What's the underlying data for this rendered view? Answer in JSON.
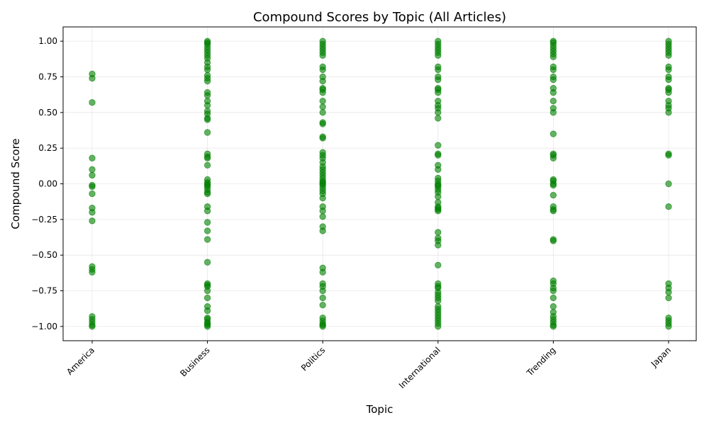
{
  "chart_data": {
    "type": "scatter",
    "title": "Compound Scores by Topic (All Articles)",
    "xlabel": "Topic",
    "ylabel": "Compound Score",
    "categories": [
      "America",
      "Business",
      "Politics",
      "International",
      "Trending",
      "Japan"
    ],
    "ylim": [
      -1.1,
      1.1
    ],
    "yticks": [
      -1.0,
      -0.75,
      -0.5,
      -0.25,
      0.0,
      0.25,
      0.5,
      0.75,
      1.0
    ],
    "ytick_labels": [
      "−1.00",
      "−0.75",
      "−0.50",
      "−0.25",
      "0.00",
      "0.25",
      "0.50",
      "0.75",
      "1.00"
    ],
    "grid": true,
    "marker_color": "#008000",
    "marker_alpha": 0.6,
    "points": {
      "America": [
        0.77,
        0.74,
        0.57,
        0.18,
        0.1,
        0.06,
        -0.01,
        -0.02,
        -0.07,
        -0.17,
        -0.2,
        -0.26,
        -0.58,
        -0.6,
        -0.62,
        -0.93,
        -0.95,
        -0.97,
        -0.99,
        -1.0
      ],
      "Business": [
        1.0,
        0.99,
        0.98,
        0.96,
        0.94,
        0.92,
        0.9,
        0.88,
        0.85,
        0.82,
        0.8,
        0.76,
        0.74,
        0.72,
        0.64,
        0.62,
        0.58,
        0.55,
        0.51,
        0.49,
        0.46,
        0.45,
        0.36,
        0.21,
        0.19,
        0.18,
        0.13,
        0.03,
        0.01,
        0.0,
        -0.01,
        -0.02,
        -0.04,
        -0.06,
        -0.07,
        -0.16,
        -0.19,
        -0.27,
        -0.33,
        -0.39,
        -0.55,
        -0.7,
        -0.71,
        -0.72,
        -0.75,
        -0.8,
        -0.86,
        -0.89,
        -0.94,
        -0.95,
        -0.97,
        -0.98,
        -0.99,
        -1.0
      ],
      "Politics": [
        1.0,
        0.98,
        0.96,
        0.94,
        0.92,
        0.9,
        0.82,
        0.8,
        0.75,
        0.72,
        0.67,
        0.66,
        0.64,
        0.58,
        0.54,
        0.5,
        0.43,
        0.42,
        0.33,
        0.32,
        0.22,
        0.2,
        0.18,
        0.15,
        0.12,
        0.1,
        0.08,
        0.06,
        0.04,
        0.02,
        0.01,
        0.0,
        -0.01,
        -0.03,
        -0.05,
        -0.07,
        -0.1,
        -0.16,
        -0.19,
        -0.23,
        -0.3,
        -0.33,
        -0.59,
        -0.62,
        -0.7,
        -0.72,
        -0.75,
        -0.8,
        -0.85,
        -0.94,
        -0.96,
        -0.98,
        -0.99,
        -1.0
      ],
      "International": [
        1.0,
        0.98,
        0.96,
        0.94,
        0.92,
        0.9,
        0.82,
        0.8,
        0.75,
        0.73,
        0.67,
        0.66,
        0.64,
        0.58,
        0.55,
        0.53,
        0.5,
        0.46,
        0.27,
        0.21,
        0.2,
        0.13,
        0.1,
        0.04,
        0.02,
        0.0,
        -0.01,
        -0.02,
        -0.04,
        -0.06,
        -0.09,
        -0.13,
        -0.16,
        -0.17,
        -0.18,
        -0.19,
        -0.34,
        -0.38,
        -0.4,
        -0.43,
        -0.57,
        -0.7,
        -0.72,
        -0.73,
        -0.76,
        -0.78,
        -0.8,
        -0.82,
        -0.86,
        -0.88,
        -0.9,
        -0.92,
        -0.94,
        -0.96,
        -0.98,
        -1.0
      ],
      "Trending": [
        1.0,
        0.99,
        0.97,
        0.95,
        0.93,
        0.91,
        0.89,
        0.82,
        0.8,
        0.75,
        0.73,
        0.67,
        0.64,
        0.58,
        0.53,
        0.5,
        0.35,
        0.21,
        0.2,
        0.18,
        0.03,
        0.02,
        0.0,
        -0.01,
        -0.08,
        -0.16,
        -0.18,
        -0.19,
        -0.39,
        -0.4,
        -0.68,
        -0.7,
        -0.73,
        -0.75,
        -0.8,
        -0.86,
        -0.9,
        -0.93,
        -0.95,
        -0.97,
        -0.99,
        -1.0
      ],
      "Japan": [
        1.0,
        0.98,
        0.96,
        0.94,
        0.92,
        0.9,
        0.82,
        0.8,
        0.75,
        0.73,
        0.67,
        0.66,
        0.64,
        0.58,
        0.55,
        0.53,
        0.5,
        0.21,
        0.2,
        0.0,
        -0.16,
        -0.7,
        -0.73,
        -0.76,
        -0.8,
        -0.94,
        -0.96,
        -0.98,
        -1.0
      ]
    }
  }
}
